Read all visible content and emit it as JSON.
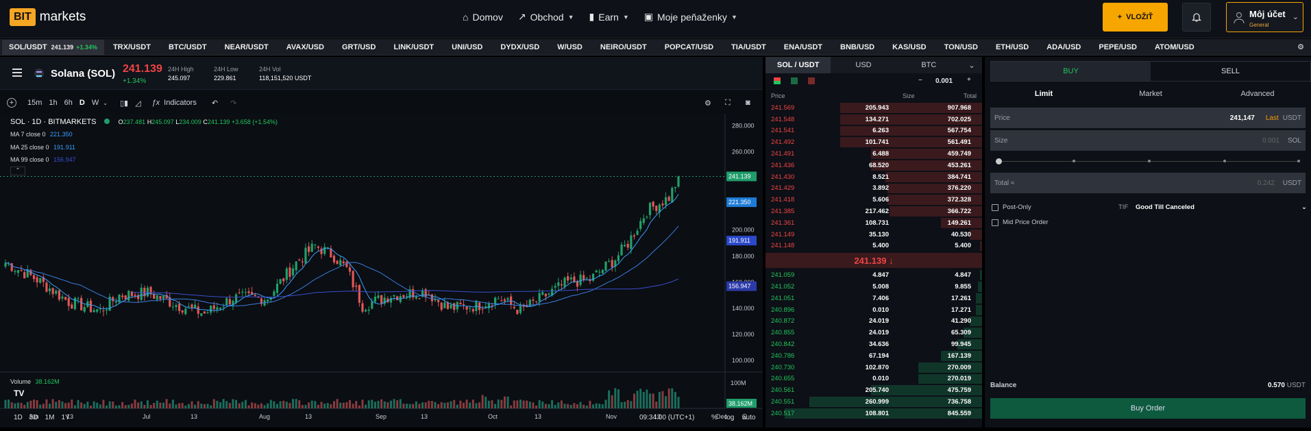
{
  "nav": {
    "logo_box": "BIT",
    "logo_text": "markets",
    "links": [
      "Domov",
      "Obchod",
      "Earn",
      "Moje peňaženky"
    ],
    "deposit": "VLOŽIŤ",
    "account_name": "Môj účet",
    "account_sub": "General"
  },
  "tickers": [
    {
      "sym": "SOL/USDT",
      "price": "241.139",
      "chg": "+1.34%"
    },
    "TRX/USDT",
    "BTC/USDT",
    "NEAR/USDT",
    "AVAX/USD",
    "GRT/USD",
    "LINK/USDT",
    "UNI/USD",
    "DYDX/USD",
    "W/USD",
    "NEIRO/USDT",
    "POPCAT/USD",
    "TIA/USDT",
    "ENA/USDT",
    "BNB/USD",
    "KAS/USD",
    "TON/USD",
    "ETH/USD",
    "ADA/USD",
    "PEPE/USD",
    "ATOM/USD"
  ],
  "symbol": {
    "name": "Solana (SOL)",
    "price": "241.139",
    "change": "+1.34%",
    "high_label": "24H High",
    "high": "245.097",
    "low_label": "24H Low",
    "low": "229.861",
    "vol_label": "24H Vol",
    "vol": "118,151,520 USDT"
  },
  "toolbar": {
    "intervals": [
      "15m",
      "1h",
      "6h",
      "D",
      "W"
    ],
    "indicators": "Indicators"
  },
  "chart_legend": {
    "title": "SOL · 1D · BITMARKETS",
    "o": "237.481",
    "h": "245.097",
    "l": "234.009",
    "c": "241.139",
    "chg": "+3.658 (+1.54%)",
    "ma7": "MA 7 close 0",
    "ma7v": "221.350",
    "ma25": "MA 25 close 0",
    "ma25v": "191.911",
    "ma99": "MA 99 close 0",
    "ma99v": "156.947",
    "vol_label": "Volume",
    "vol_val": "38.162M"
  },
  "chart_data": {
    "type": "candlestick",
    "yticks": [
      "280.000",
      "260.000",
      "240.000",
      "220.000",
      "200.000",
      "180.000",
      "160.000",
      "140.000",
      "120.000",
      "100.000"
    ],
    "xticks": [
      "Jun",
      "13",
      "Jul",
      "13",
      "Aug",
      "13",
      "Sep",
      "13",
      "Oct",
      "13",
      "Nov",
      "13",
      "Dec"
    ],
    "price_labels": {
      "last": "241.139",
      "ma7": "221.350",
      "ma25": "191.911",
      "ma99": "156.947"
    },
    "vol_tick": "100M",
    "vol_last": "38.162M",
    "ylim": [
      100,
      285
    ]
  },
  "chart_footer": {
    "ranges": [
      "1D",
      "5D",
      "1M",
      "1Y"
    ],
    "time": "09:34:00 (UTC+1)",
    "pct": "%",
    "log": "log",
    "auto": "auto"
  },
  "orderbook": {
    "tabs": [
      "SOL / USDT",
      "USD",
      "BTC"
    ],
    "step": "0.001",
    "headers": [
      "Price",
      "Size",
      "Total"
    ],
    "asks": [
      [
        "241.569",
        "205.943",
        "907.968",
        0.69
      ],
      [
        "241.548",
        "134.271",
        "702.025",
        0.69
      ],
      [
        "241.541",
        "6.263",
        "567.754",
        0.69
      ],
      [
        "241.492",
        "101.741",
        "561.491",
        0.69
      ],
      [
        "241.491",
        "6.488",
        "459.749",
        0.54
      ],
      [
        "241.436",
        "68.520",
        "453.261",
        0.54
      ],
      [
        "241.430",
        "8.521",
        "384.741",
        0.47
      ],
      [
        "241.429",
        "3.892",
        "376.220",
        0.46
      ],
      [
        "241.418",
        "5.606",
        "372.328",
        0.46
      ],
      [
        "241.385",
        "217.462",
        "366.722",
        0.45
      ],
      [
        "241.361",
        "108.731",
        "149.261",
        0.2
      ],
      [
        "241.149",
        "35.130",
        "40.530",
        0.06
      ],
      [
        "241.148",
        "5.400",
        "5.400",
        0.01
      ]
    ],
    "mid": "241.139 ↓",
    "bids": [
      [
        "241.059",
        "4.847",
        "4.847",
        0.01
      ],
      [
        "241.052",
        "5.008",
        "9.855",
        0.02
      ],
      [
        "241.051",
        "7.406",
        "17.261",
        0.03
      ],
      [
        "240.896",
        "0.010",
        "17.271",
        0.03
      ],
      [
        "240.872",
        "24.019",
        "41.290",
        0.06
      ],
      [
        "240.855",
        "24.019",
        "65.309",
        0.09
      ],
      [
        "240.842",
        "34.636",
        "99.945",
        0.12
      ],
      [
        "240.786",
        "67.194",
        "167.139",
        0.2
      ],
      [
        "240.730",
        "102.870",
        "270.009",
        0.31
      ],
      [
        "240.655",
        "0.010",
        "270.019",
        0.31
      ],
      [
        "240.561",
        "205.740",
        "475.759",
        0.54
      ],
      [
        "240.551",
        "260.999",
        "736.758",
        0.84
      ],
      [
        "240.517",
        "108.801",
        "845.559",
        0.96
      ]
    ]
  },
  "order": {
    "buy": "BUY",
    "sell": "SELL",
    "tabs": [
      "Limit",
      "Market",
      "Advanced"
    ],
    "price_label": "Price",
    "price_val": "241,147",
    "last": "Last",
    "usdt": "USDT",
    "size_label": "Size",
    "size_ph": "0.001",
    "sol": "SOL",
    "total_label": "Total ≈",
    "total_ph": "0.242",
    "post_only": "Post-Only",
    "tif": "TIF",
    "tif_val": "Good Till Canceled",
    "mid_price": "Mid Price Order",
    "balance_label": "Balance",
    "balance": "0.570",
    "balance_unit": "USDT",
    "submit": "Buy Order"
  }
}
